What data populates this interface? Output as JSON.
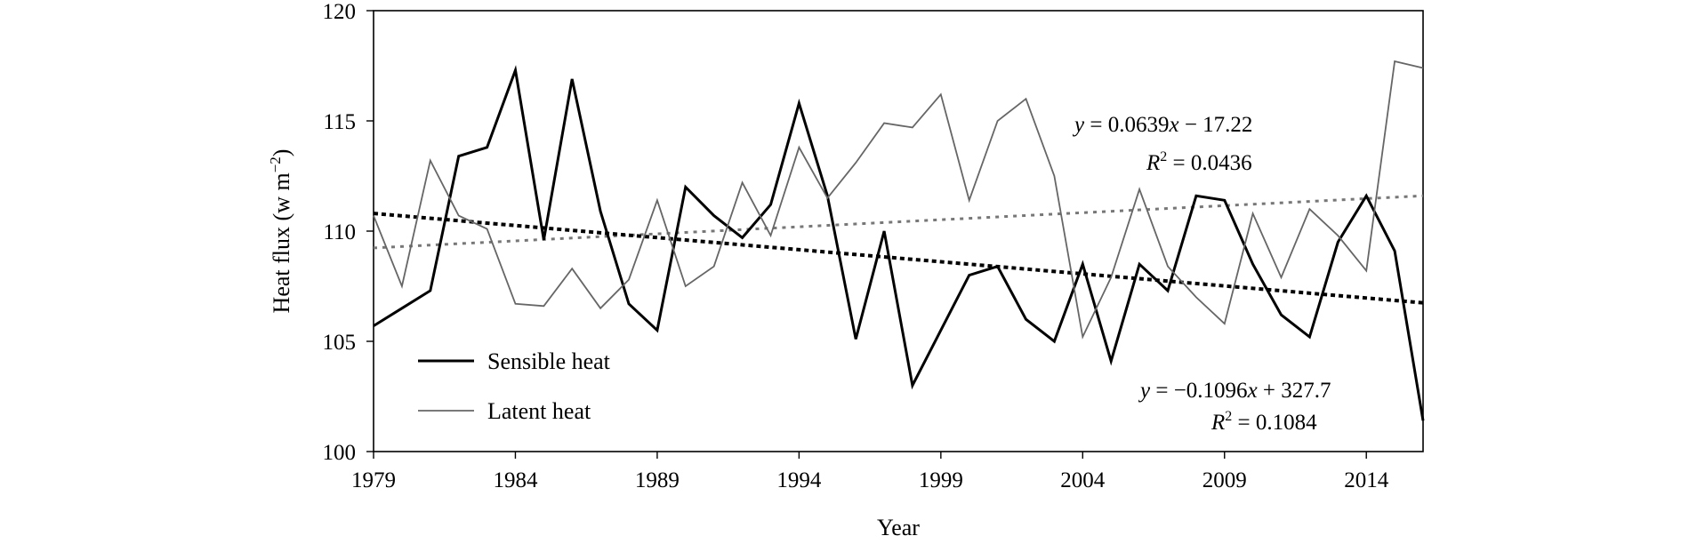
{
  "chart_data": {
    "type": "line",
    "title": "",
    "xlabel": "Year",
    "ylabel_parts": {
      "main": "Heat flux (w m",
      "sup": "−2",
      "close": ")"
    },
    "xlim": [
      1979,
      2016
    ],
    "ylim": [
      100,
      120
    ],
    "x_ticks": [
      1979,
      1984,
      1989,
      1994,
      1999,
      2004,
      2009,
      2014
    ],
    "y_ticks": [
      100,
      105,
      110,
      115,
      120
    ],
    "x": [
      1979,
      1980,
      1981,
      1982,
      1983,
      1984,
      1985,
      1986,
      1987,
      1988,
      1989,
      1990,
      1991,
      1992,
      1993,
      1994,
      1995,
      1996,
      1997,
      1998,
      1999,
      2000,
      2001,
      2002,
      2003,
      2004,
      2005,
      2006,
      2007,
      2008,
      2009,
      2010,
      2011,
      2012,
      2013,
      2014,
      2015,
      2016
    ],
    "series": [
      {
        "name": "Sensible heat",
        "color": "#000000",
        "values": [
          105.7,
          106.5,
          107.3,
          113.4,
          113.8,
          117.3,
          109.6,
          116.9,
          110.9,
          106.7,
          105.5,
          112.0,
          110.7,
          109.7,
          111.2,
          115.8,
          111.6,
          105.1,
          110.0,
          103.0,
          105.5,
          108.0,
          108.4,
          106.0,
          105.0,
          108.5,
          104.1,
          108.5,
          107.3,
          111.6,
          111.4,
          108.5,
          106.2,
          105.2,
          109.5,
          111.6,
          109.1,
          101.4
        ]
      },
      {
        "name": "Latent heat",
        "color": "#666666",
        "values": [
          110.7,
          107.5,
          113.2,
          110.7,
          110.1,
          106.7,
          106.6,
          108.3,
          106.5,
          107.8,
          111.4,
          107.5,
          108.4,
          112.2,
          109.8,
          113.8,
          111.5,
          113.1,
          114.9,
          114.7,
          116.2,
          111.4,
          115.0,
          116.0,
          112.5,
          105.2,
          107.9,
          111.9,
          108.4,
          107.0,
          105.8,
          110.8,
          107.9,
          111.0,
          109.8,
          108.2,
          117.7,
          117.4
        ]
      }
    ],
    "trendlines": [
      {
        "series": "Latent heat",
        "slope": 0.0639,
        "intercept": -17.22,
        "color": "#777777",
        "style": "dotted",
        "equation": {
          "y": "y",
          "mid": " = 0.0639",
          "x": "x",
          "tail": " − 17.22"
        },
        "r2": {
          "r": "R",
          "sup": "2",
          "tail": " = 0.0436"
        }
      },
      {
        "series": "Sensible heat",
        "slope": -0.1096,
        "intercept": 327.7,
        "color": "#000000",
        "style": "dotted",
        "equation": {
          "y": "y",
          "mid": " = −0.1096",
          "x": "x",
          "tail": " + 327.7"
        },
        "r2": {
          "r": "R",
          "sup": "2",
          "tail": " = 0.1084"
        }
      }
    ],
    "legend": {
      "placement": "bottom-left",
      "entries": [
        {
          "label": "Sensible heat",
          "color": "#000000"
        },
        {
          "label": "Latent heat",
          "color": "#666666"
        }
      ]
    }
  }
}
